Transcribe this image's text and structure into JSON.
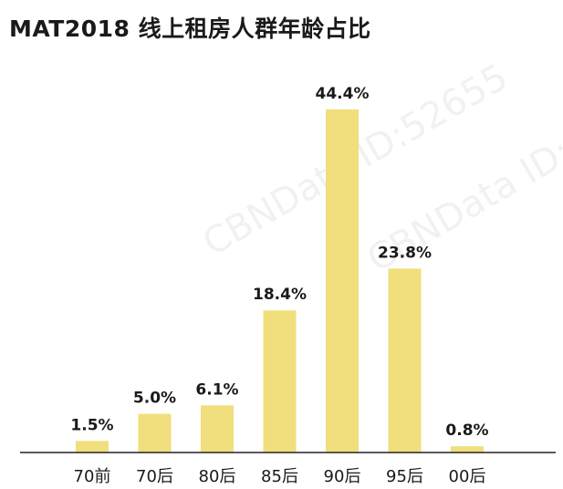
{
  "title": "MAT2018 线上租房人群年龄占比",
  "watermark": "CBNData ID:52655",
  "accent_color": "#F0DF7C",
  "chart_data": {
    "type": "bar",
    "title": "MAT2018 线上租房人群年龄占比",
    "categories": [
      "70前",
      "70后",
      "80后",
      "85后",
      "90后",
      "95后",
      "00后"
    ],
    "values": [
      1.5,
      5.0,
      6.1,
      18.4,
      44.4,
      23.8,
      0.8
    ],
    "value_labels": [
      "1.5%",
      "5.0%",
      "6.1%",
      "18.4%",
      "44.4%",
      "23.8%",
      "0.8%"
    ],
    "unit": "%",
    "ylim": [
      0,
      50
    ],
    "grid": false,
    "legend": "none",
    "bar_color": "#F0DF7C"
  }
}
